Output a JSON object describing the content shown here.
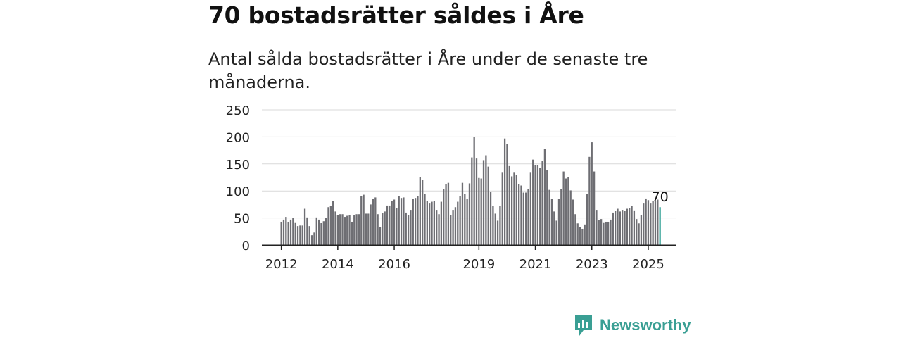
{
  "title": "70 bostadsrätter såldes i Åre",
  "subtitle": "Antal sålda bostadsrätter i Åre under de senaste tre månaderna.",
  "brand": {
    "name": "Newsworthy",
    "logo_icon": "bar-chart-logo-icon"
  },
  "colors": {
    "bar": "#6e6e73",
    "highlight": "#3aa59a",
    "grid": "#d9d9d9",
    "axis": "#222222",
    "brand": "#3a9f94"
  },
  "chart_data": {
    "type": "bar",
    "x_unit": "month",
    "x_start": "2012-01",
    "x_tick_labels": [
      "2012",
      "2014",
      "2016",
      "2019",
      "2021",
      "2023",
      "2025"
    ],
    "ylim": [
      0,
      250
    ],
    "y_ticks": [
      0,
      50,
      100,
      150,
      200,
      250
    ],
    "grid": true,
    "highlight_last": true,
    "last_value_label": "70",
    "values": [
      43,
      47,
      52,
      43,
      47,
      50,
      42,
      35,
      36,
      36,
      67,
      51,
      35,
      18,
      23,
      51,
      47,
      41,
      44,
      50,
      70,
      72,
      81,
      62,
      55,
      57,
      57,
      52,
      54,
      56,
      43,
      56,
      57,
      57,
      90,
      93,
      58,
      58,
      75,
      85,
      88,
      57,
      33,
      59,
      62,
      73,
      73,
      81,
      84,
      68,
      90,
      87,
      88,
      60,
      55,
      65,
      85,
      87,
      90,
      125,
      120,
      95,
      82,
      78,
      80,
      82,
      65,
      57,
      80,
      103,
      112,
      115,
      55,
      65,
      70,
      80,
      90,
      115,
      95,
      85,
      114,
      162,
      200,
      160,
      124,
      123,
      157,
      166,
      145,
      98,
      72,
      58,
      45,
      72,
      135,
      197,
      187,
      146,
      127,
      135,
      129,
      112,
      110,
      97,
      97,
      103,
      135,
      158,
      148,
      148,
      143,
      155,
      178,
      139,
      102,
      85,
      62,
      45,
      85,
      103,
      136,
      123,
      126,
      101,
      84,
      57,
      40,
      33,
      30,
      38,
      95,
      163,
      190,
      136,
      65,
      46,
      48,
      42,
      43,
      43,
      47,
      60,
      63,
      67,
      62,
      65,
      63,
      67,
      68,
      72,
      64,
      48,
      40,
      56,
      78,
      86,
      83,
      78,
      81,
      82,
      84,
      70
    ]
  }
}
